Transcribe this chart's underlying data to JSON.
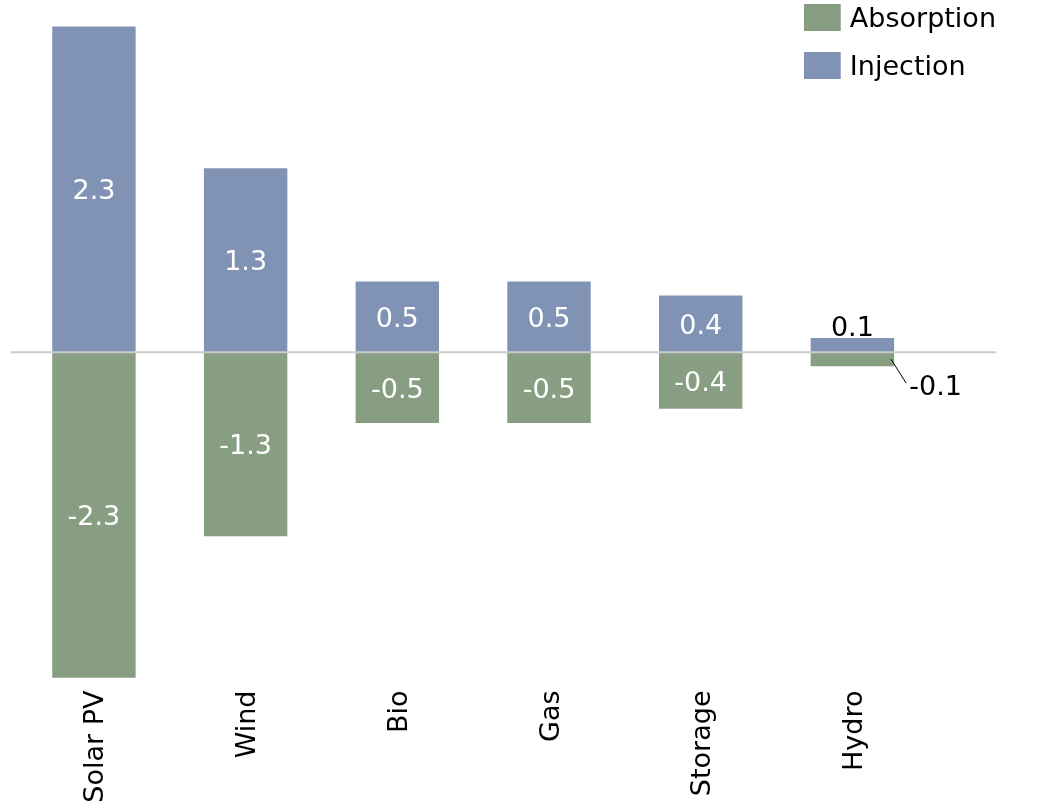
{
  "chart_data": {
    "type": "bar",
    "stacked": true,
    "categories": [
      "Solar PV",
      "Wind",
      "Bio",
      "Gas",
      "Storage",
      "Hydro"
    ],
    "series": [
      {
        "name": "Absorption",
        "color": "#879e82",
        "values": [
          -2.3,
          -1.3,
          -0.5,
          -0.5,
          -0.4,
          -0.1
        ]
      },
      {
        "name": "Injection",
        "color": "#8093b5",
        "values": [
          2.3,
          1.3,
          0.5,
          0.5,
          0.4,
          0.1
        ]
      }
    ],
    "data_labels": true,
    "legend": "top right",
    "grid": false
  }
}
